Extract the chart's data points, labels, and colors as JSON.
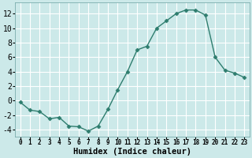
{
  "x": [
    0,
    1,
    2,
    3,
    4,
    5,
    6,
    7,
    8,
    9,
    10,
    11,
    12,
    13,
    14,
    15,
    16,
    17,
    18,
    19,
    20,
    21,
    22,
    23
  ],
  "y": [
    -0.2,
    -1.3,
    -1.5,
    -2.5,
    -2.3,
    -3.5,
    -3.6,
    -4.2,
    -3.5,
    -1.2,
    1.5,
    4.0,
    7.0,
    7.5,
    10.0,
    11.0,
    12.0,
    12.5,
    12.5,
    11.8,
    6.0,
    4.2,
    3.8,
    3.2
  ],
  "line_color": "#2e7d6e",
  "marker": "D",
  "marker_size": 2.5,
  "bg_color": "#cce9e9",
  "grid_color": "#ffffff",
  "xlabel": "Humidex (Indice chaleur)",
  "xlim": [
    -0.5,
    23.5
  ],
  "ylim": [
    -5,
    13.5
  ],
  "yticks": [
    -4,
    -2,
    0,
    2,
    4,
    6,
    8,
    10,
    12
  ],
  "xticks": [
    0,
    1,
    2,
    3,
    4,
    5,
    6,
    7,
    8,
    9,
    10,
    11,
    12,
    13,
    14,
    15,
    16,
    17,
    18,
    19,
    20,
    21,
    22,
    23
  ],
  "xlabel_fontsize": 7.5,
  "ytick_fontsize": 7,
  "xtick_fontsize": 5.5,
  "line_width": 1.0
}
